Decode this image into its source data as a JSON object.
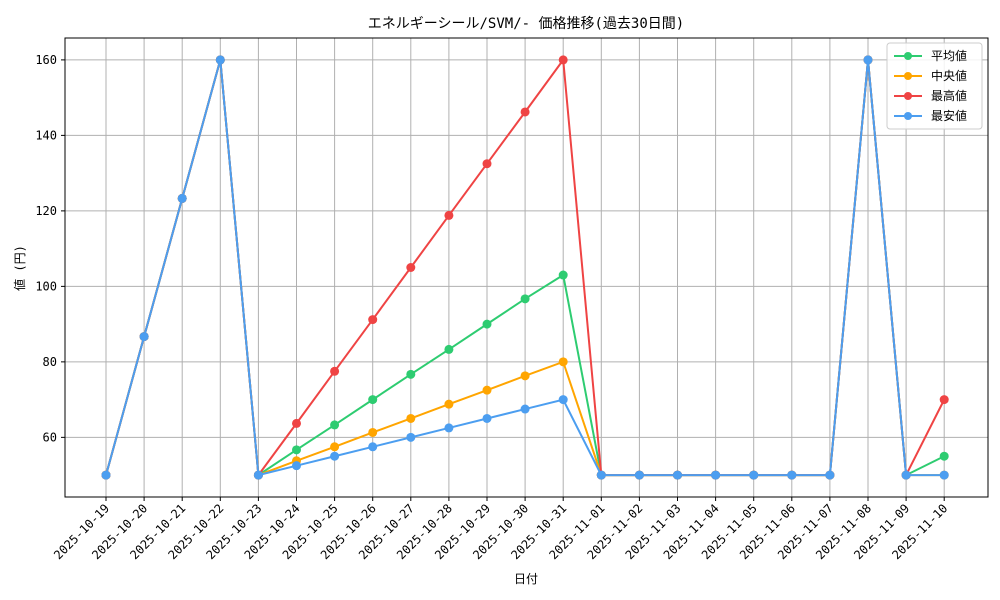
{
  "chart_data": {
    "type": "line",
    "title": "エネルギーシール/SVM/- 価格推移(過去30日間)",
    "xlabel": "日付",
    "ylabel": "値 (円)",
    "x": [
      "2025-10-19",
      "2025-10-20",
      "2025-10-21",
      "2025-10-22",
      "2025-10-23",
      "2025-10-24",
      "2025-10-25",
      "2025-10-26",
      "2025-10-27",
      "2025-10-28",
      "2025-10-29",
      "2025-10-30",
      "2025-10-31",
      "2025-11-01",
      "2025-11-02",
      "2025-11-03",
      "2025-11-04",
      "2025-11-05",
      "2025-11-06",
      "2025-11-07",
      "2025-11-08",
      "2025-11-09",
      "2025-11-10"
    ],
    "ylim": [
      44.2,
      165.8
    ],
    "yticks": [
      60,
      80,
      100,
      120,
      140,
      160
    ],
    "grid": true,
    "legend_position": "top-right",
    "series": [
      {
        "name": "平均値",
        "color": "#2ecc71",
        "values": [
          50,
          86.7,
          123.3,
          160,
          50,
          56.7,
          63.3,
          70,
          76.7,
          83.3,
          90,
          96.7,
          103,
          50,
          50,
          50,
          50,
          50,
          50,
          50,
          160,
          50,
          55
        ]
      },
      {
        "name": "中央値",
        "color": "#ffa500",
        "values": [
          50,
          86.7,
          123.3,
          160,
          50,
          53.8,
          57.5,
          61.3,
          65,
          68.8,
          72.5,
          76.3,
          80,
          50,
          50,
          50,
          50,
          50,
          50,
          50,
          160,
          50,
          50
        ]
      },
      {
        "name": "最高値",
        "color": "#ef4444",
        "values": [
          50,
          86.7,
          123.3,
          160,
          50,
          63.7,
          77.5,
          91.2,
          105,
          118.8,
          132.5,
          146.2,
          160,
          50,
          50,
          50,
          50,
          50,
          50,
          50,
          160,
          50,
          70
        ]
      },
      {
        "name": "最安値",
        "color": "#4c9ef0",
        "values": [
          50,
          86.7,
          123.3,
          160,
          50,
          52.5,
          55,
          57.5,
          60,
          62.5,
          65,
          67.5,
          70,
          50,
          50,
          50,
          50,
          50,
          50,
          50,
          160,
          50,
          50
        ]
      }
    ]
  }
}
